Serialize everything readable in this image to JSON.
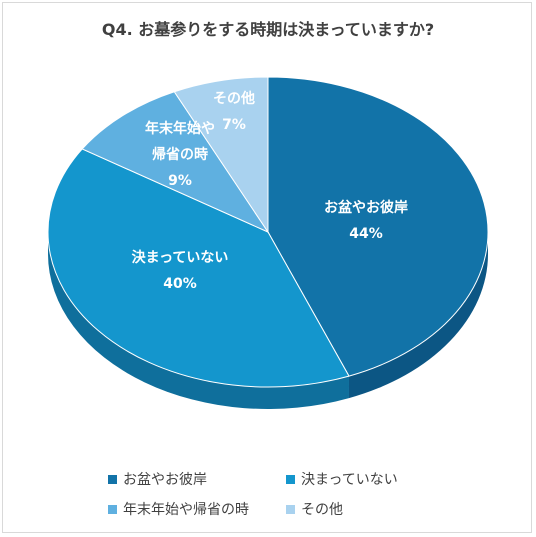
{
  "chart_data": {
    "type": "pie",
    "title": "Q4. お墓参りをする時期は決まっていますか?",
    "categories": [
      "お盆やお彼岸",
      "決まっていない",
      "年末年始や帰省の時",
      "その他"
    ],
    "values": [
      44,
      40,
      9,
      7
    ],
    "value_labels": [
      "44%",
      "40%",
      "9%",
      "7%"
    ],
    "slice_label_lines": [
      [
        "お盆やお彼岸"
      ],
      [
        "決まっていない"
      ],
      [
        "年末年始や",
        "帰省の時"
      ],
      [
        "その他"
      ]
    ],
    "legend_placement": "bottom",
    "colors": [
      "#1273a8",
      "#1496cd",
      "#5fb0e0",
      "#a9d2ef"
    ],
    "side_colors": [
      "#0c5684",
      "#0f6f9c",
      "#3f86b3",
      "#7ea6c4"
    ]
  }
}
